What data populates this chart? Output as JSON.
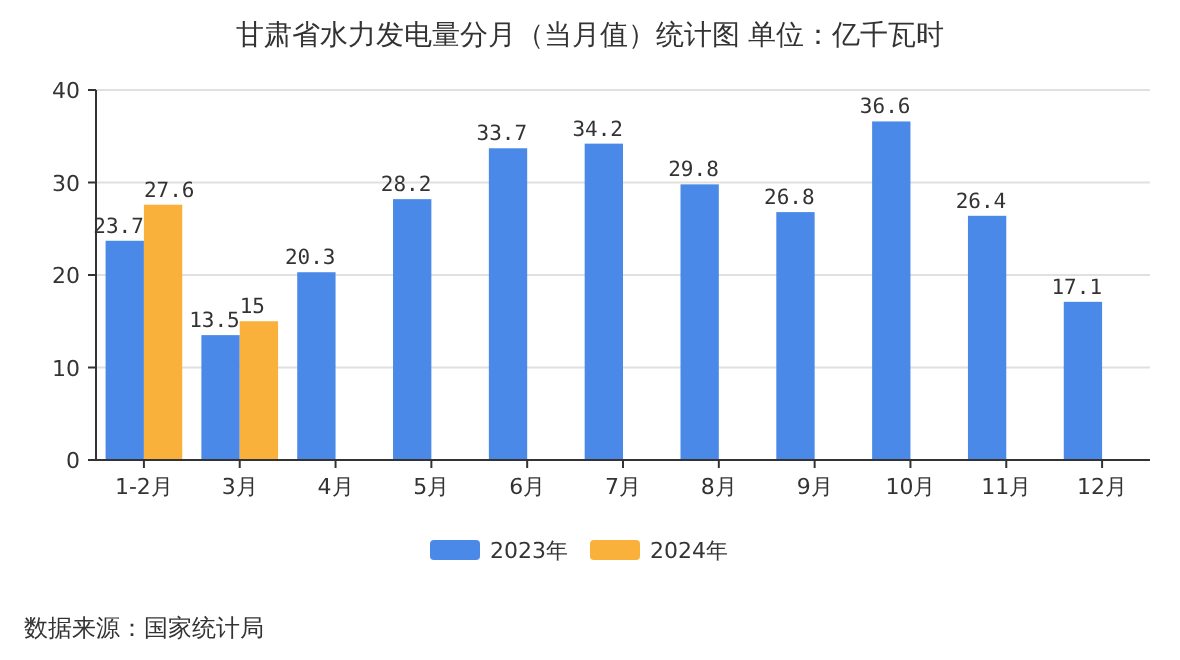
{
  "chart_data": {
    "type": "bar",
    "title": "甘肃省水力发电量分月（当月值）统计图 单位：亿千瓦时",
    "categories": [
      "1-2月",
      "3月",
      "4月",
      "5月",
      "6月",
      "7月",
      "8月",
      "9月",
      "10月",
      "11月",
      "12月"
    ],
    "series": [
      {
        "name": "2023年",
        "color": "#4a89e8",
        "values": [
          23.7,
          13.5,
          20.3,
          28.2,
          33.7,
          34.2,
          29.8,
          26.8,
          36.6,
          26.4,
          17.1
        ]
      },
      {
        "name": "2024年",
        "color": "#f9b13c",
        "values": [
          27.6,
          15,
          null,
          null,
          null,
          null,
          null,
          null,
          null,
          null,
          null
        ]
      }
    ],
    "ylim": [
      0,
      40
    ],
    "yticks": [
      0,
      10,
      20,
      30,
      40
    ],
    "grid": "y",
    "legend": "bottom",
    "data_labels": true,
    "annotations": [
      "数据来源：国家统计局"
    ]
  }
}
